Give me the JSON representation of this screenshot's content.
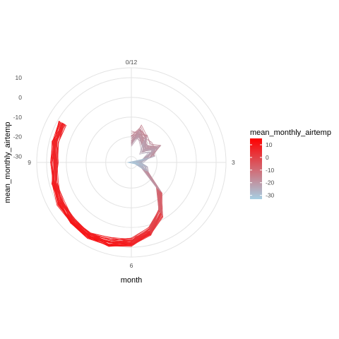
{
  "chart_data": {
    "type": "line",
    "coord": "polar",
    "title": "",
    "xlabel": "month",
    "ylabel": "mean_monthly_airtemp",
    "theta": {
      "variable": "month",
      "range": [
        0,
        12
      ],
      "tick_labels": [
        {
          "value": 0,
          "label": "0/12"
        },
        {
          "value": 3,
          "label": "3"
        },
        {
          "value": 6,
          "label": "6"
        },
        {
          "value": 9,
          "label": "9"
        }
      ]
    },
    "radial": {
      "variable": "mean_monthly_airtemp",
      "range": [
        -33,
        15
      ],
      "tick_labels": [
        "10",
        "0",
        "-10",
        "-20",
        "-30"
      ],
      "tick_values": [
        10,
        0,
        -10,
        -20,
        -30
      ]
    },
    "grid": true,
    "legend": {
      "position": "right",
      "title": "mean_monthly_airtemp",
      "labels": [
        "10",
        "0",
        "-10",
        "-20",
        "-30"
      ],
      "values": [
        10,
        0,
        -10,
        -20,
        -30
      ],
      "range": [
        -33,
        15
      ],
      "color_low": "#a6cfe3",
      "color_high": "#ff0000"
    },
    "series_count": 30,
    "base_profile": {
      "month": [
        0,
        0.5,
        1,
        1.5,
        2,
        2.5,
        3,
        3.5,
        4,
        4.5,
        5,
        5.5,
        6,
        6.5,
        7,
        7.5,
        8,
        8.5,
        9,
        9.5,
        9.99
      ],
      "mean_monthly_airtemp": [
        -21.3,
        -17.0,
        -20.0,
        -22.6,
        -18.5,
        -24.0,
        -30.5,
        -28.0,
        -24.5,
        -13.0,
        -3.5,
        3.5,
        7.5,
        9.0,
        10.0,
        9.5,
        8.5,
        7.5,
        6.0,
        7.0,
        7.0
      ]
    }
  }
}
